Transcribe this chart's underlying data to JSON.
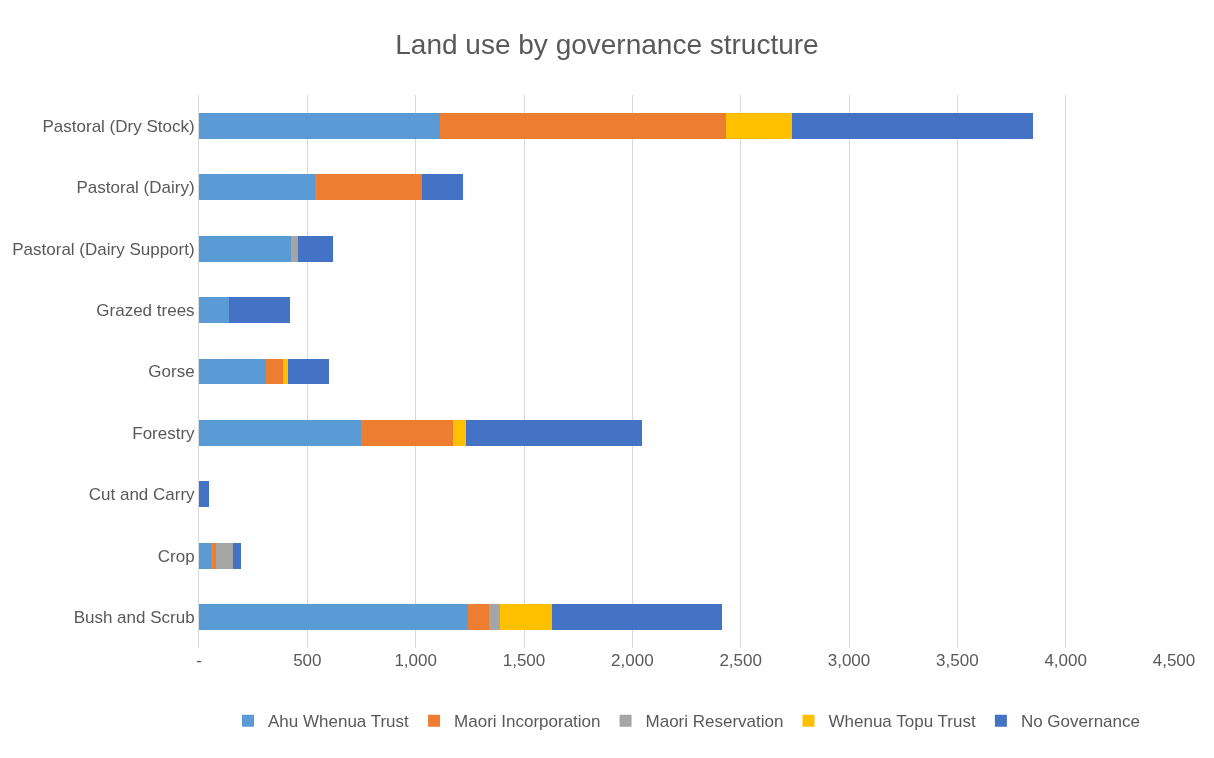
{
  "chart_data": {
    "type": "bar",
    "title": "Land use by governance structure",
    "orientation": "horizontal",
    "stacked": true,
    "categories": [
      "Pastoral (Dry Stock)",
      "Pastoral (Dairy)",
      "Pastoral (Dairy Support)",
      "Grazed trees",
      "Gorse",
      "Forestry",
      "Cut and Carry",
      "Crop",
      "Bush and Scrub"
    ],
    "series": [
      {
        "name": "Ahu Whenua Trust",
        "color": "#5b9bd5",
        "values": [
          1113,
          537,
          425,
          138,
          309,
          749,
          null,
          56,
          1240
        ]
      },
      {
        "name": "Maori Incorporation",
        "color": "#ed7d31",
        "values": [
          1317,
          492,
          null,
          null,
          77,
          424,
          null,
          22,
          100
        ]
      },
      {
        "name": "Maori Reservation",
        "color": "#a5a5a5",
        "values": [
          null,
          null,
          31,
          null,
          null,
          null,
          null,
          77,
          48
        ]
      },
      {
        "name": "Whenua Topu Trust",
        "color": "#ffc000",
        "values": [
          309,
          null,
          null,
          null,
          24,
          58,
          null,
          null,
          240
        ]
      },
      {
        "name": "No Governance",
        "color": "#4472c4",
        "values": [
          1108,
          191,
          162,
          280,
          188,
          814,
          48,
          41,
          786
        ]
      }
    ],
    "xlim": [
      0,
      4500
    ],
    "xticks": [
      {
        "value": 0,
        "label": "-"
      },
      {
        "value": 500,
        "label": "500"
      },
      {
        "value": 1000,
        "label": "1,000"
      },
      {
        "value": 1500,
        "label": "1,500"
      },
      {
        "value": 2000,
        "label": "2,000"
      },
      {
        "value": 2500,
        "label": "2,500"
      },
      {
        "value": 3000,
        "label": "3,000"
      },
      {
        "value": 3500,
        "label": "3,500"
      },
      {
        "value": 4000,
        "label": "4,000"
      },
      {
        "value": 4500,
        "label": "4,500"
      }
    ],
    "grid": "x",
    "legend": "bottom"
  }
}
